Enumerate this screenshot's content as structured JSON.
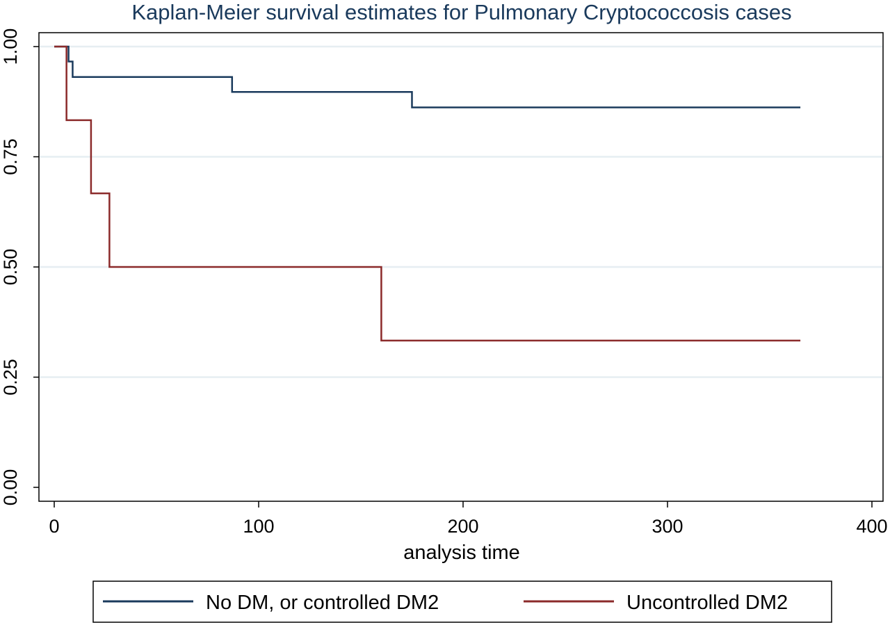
{
  "chart_data": {
    "type": "line",
    "step": true,
    "title": "Kaplan-Meier survival estimates for Pulmonary Cryptococcosis cases",
    "xlabel": "analysis time",
    "ylabel": "",
    "xlim": [
      0,
      400
    ],
    "ylim": [
      0,
      1
    ],
    "x_ticks": [
      0,
      100,
      200,
      300,
      400
    ],
    "y_ticks": [
      0,
      0.25,
      0.5,
      0.75,
      1
    ],
    "x_tick_labels": [
      "0",
      "100",
      "200",
      "300",
      "400"
    ],
    "y_tick_labels": [
      "0.00",
      "0.25",
      "0.50",
      "0.75",
      "1.00"
    ],
    "grid": "horizontal",
    "legend_position": "bottom",
    "series": [
      {
        "name": "No DM, or controlled DM2",
        "color": "#1a3a5c",
        "x": [
          0,
          7,
          9,
          87,
          175,
          365
        ],
        "y": [
          1.0,
          0.966,
          0.931,
          0.897,
          0.862,
          0.862
        ]
      },
      {
        "name": "Uncontrolled DM2",
        "color": "#8b2a2a",
        "x": [
          0,
          6,
          18,
          27,
          160,
          365
        ],
        "y": [
          1.0,
          0.833,
          0.667,
          0.5,
          0.333,
          0.333
        ]
      }
    ]
  }
}
